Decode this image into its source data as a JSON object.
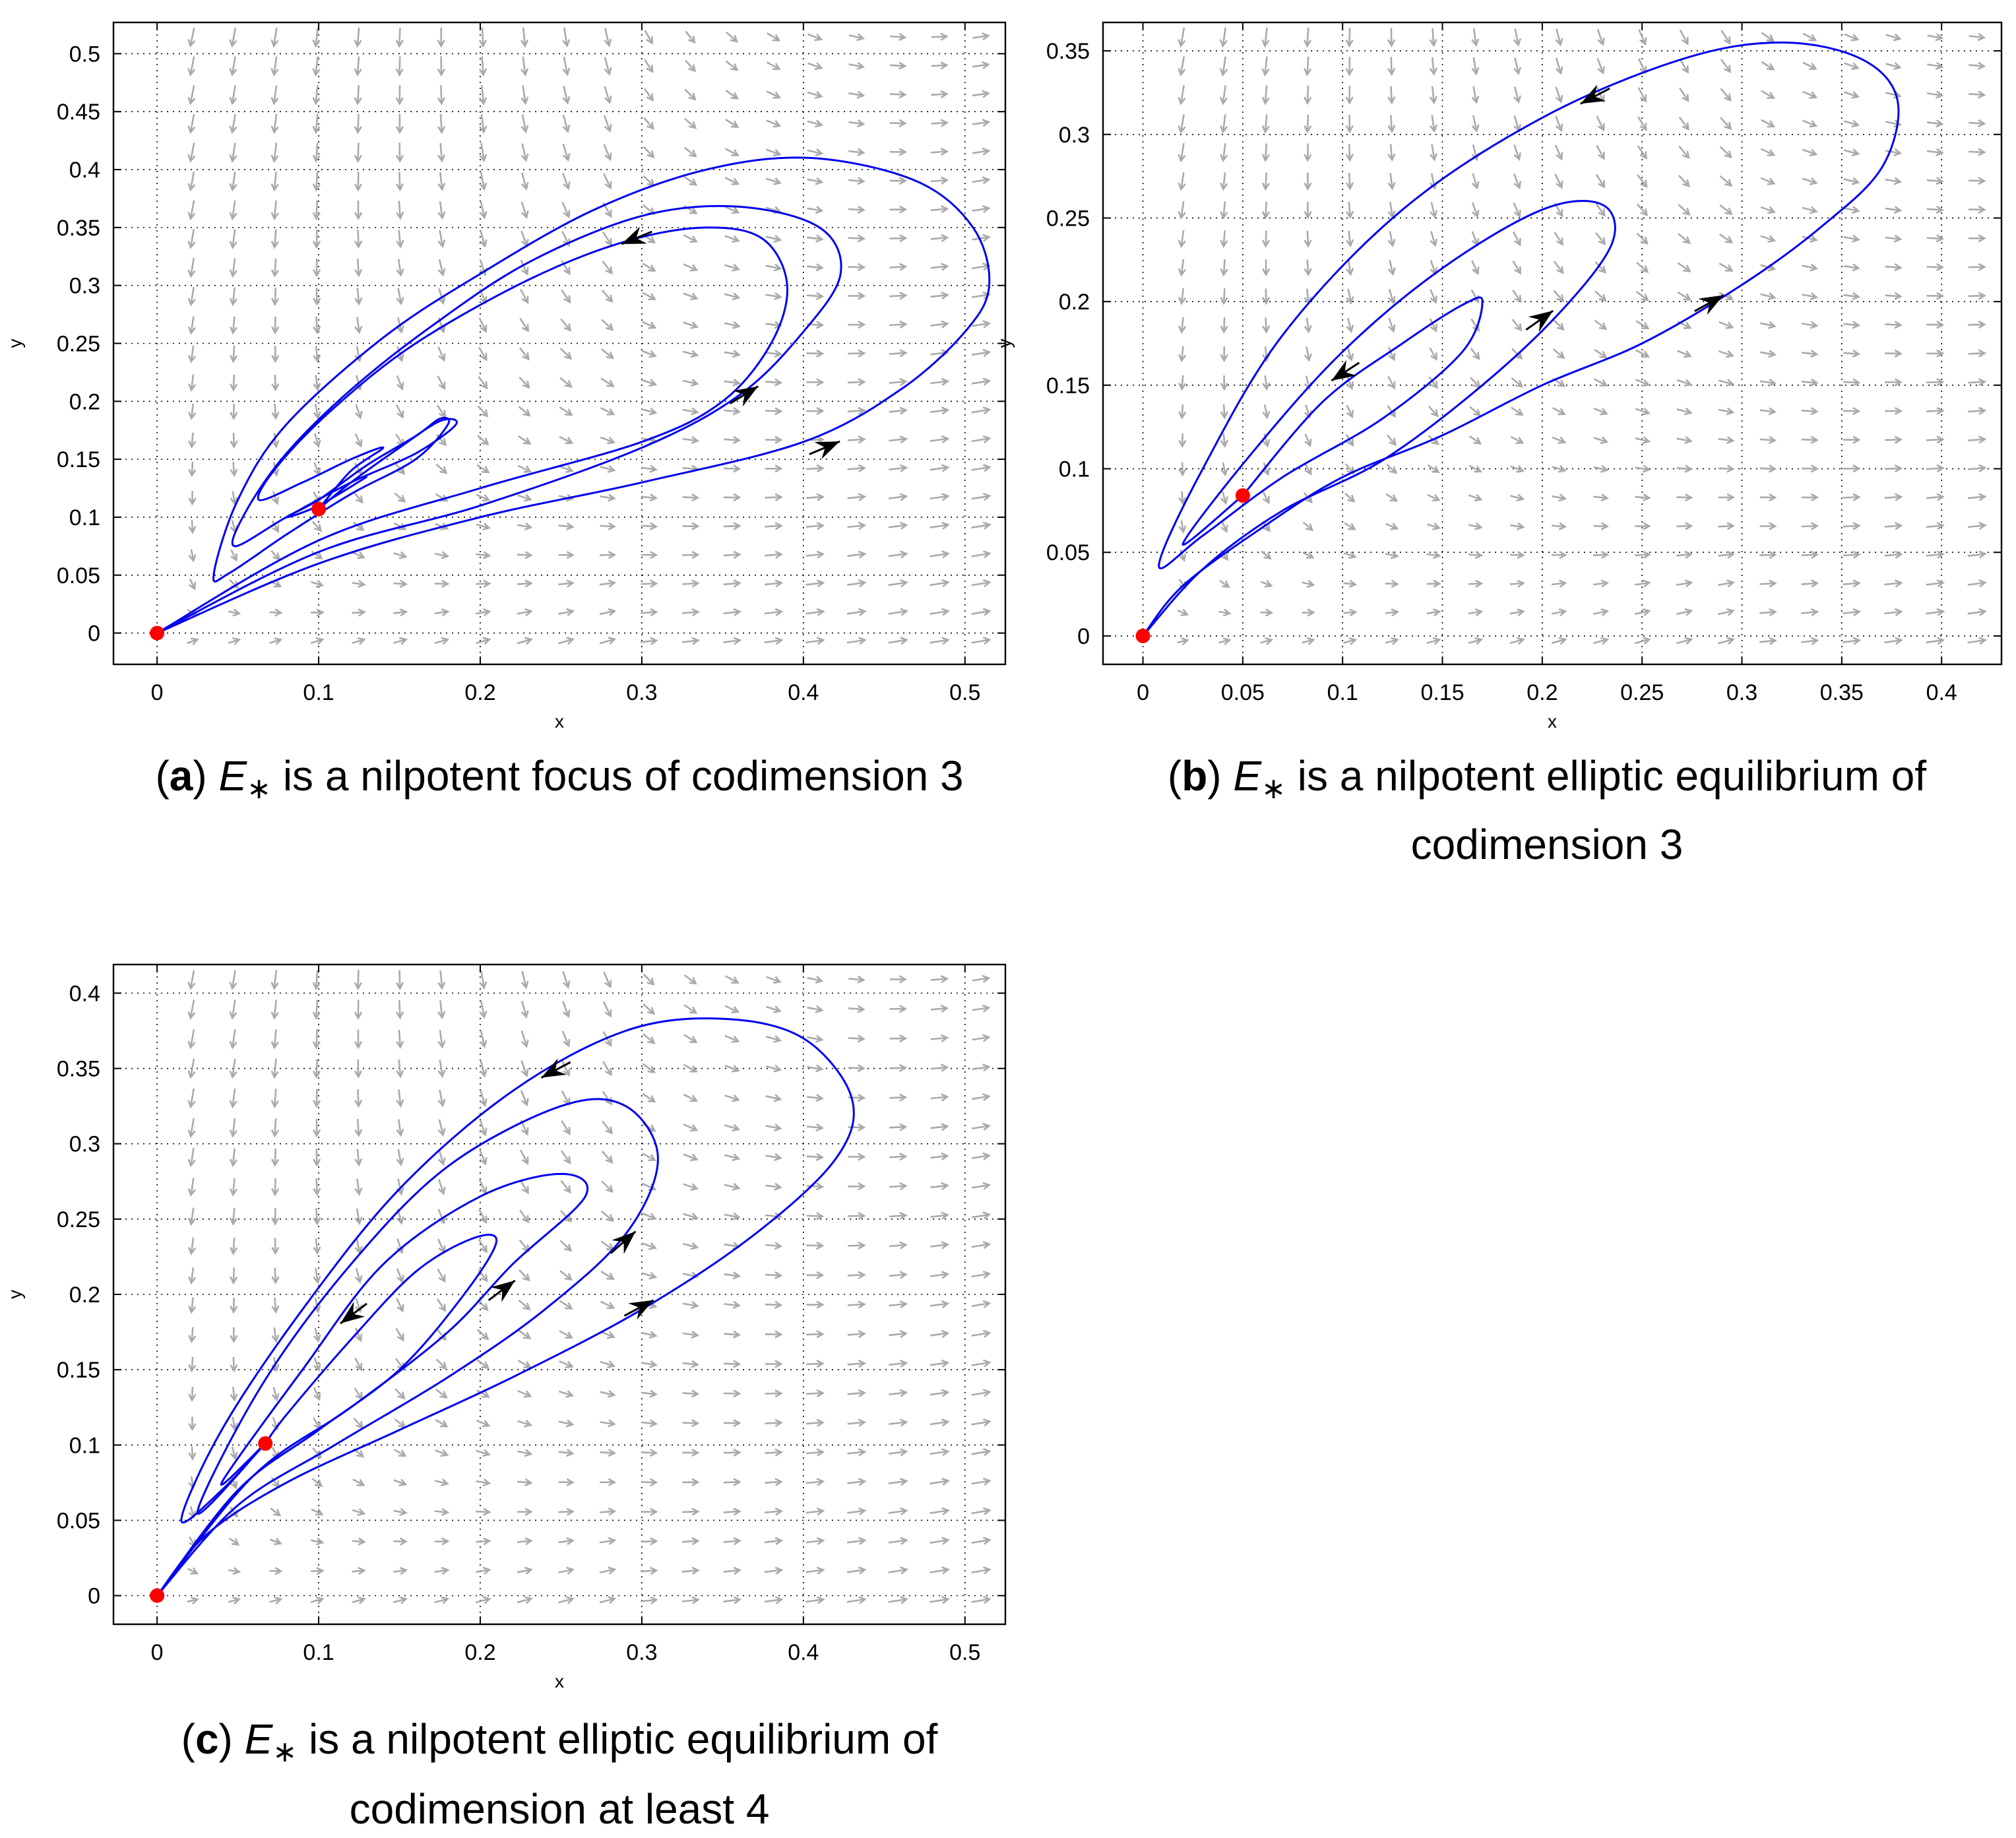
{
  "chart_data": [
    {
      "id": "a",
      "type": "line",
      "xlabel": "x",
      "ylabel": "y",
      "xlim": [
        -0.027,
        0.525
      ],
      "ylim": [
        -0.027,
        0.527
      ],
      "xticks": [
        0,
        0.1,
        0.2,
        0.3,
        0.4,
        0.5
      ],
      "xtick_labels": [
        "0",
        "0.1",
        "0.2",
        "0.3",
        "0.4",
        "0.5"
      ],
      "yticks": [
        0,
        0.05,
        0.1,
        0.15,
        0.2,
        0.25,
        0.3,
        0.35,
        0.4,
        0.45,
        0.5
      ],
      "ytick_labels": [
        "0",
        "0.05",
        "0.1",
        "0.15",
        "0.2",
        "0.25",
        "0.3",
        "0.35",
        "0.4",
        "0.45",
        "0.5"
      ],
      "grid": true,
      "caption": {
        "label": "a",
        "prefix": ") ",
        "symbol": "E",
        "sub": "∗",
        "lines": [
          " is a nilpotent focus of codimension 3"
        ]
      },
      "equilibria": [
        [
          0,
          0
        ],
        [
          0.1,
          0.107
        ]
      ],
      "trajectories": [
        [
          [
            0,
            0
          ],
          [
            0.1,
            0.06
          ],
          [
            0.2,
            0.1
          ],
          [
            0.3,
            0.13
          ],
          [
            0.4,
            0.165
          ],
          [
            0.46,
            0.21
          ],
          [
            0.5,
            0.26
          ],
          [
            0.515,
            0.3
          ],
          [
            0.505,
            0.35
          ],
          [
            0.47,
            0.39
          ],
          [
            0.405,
            0.41
          ],
          [
            0.34,
            0.4
          ],
          [
            0.27,
            0.365
          ],
          [
            0.2,
            0.31
          ],
          [
            0.14,
            0.255
          ],
          [
            0.08,
            0.18
          ],
          [
            0.05,
            0.115
          ],
          [
            0.035,
            0.05
          ],
          [
            0.045,
            0.052
          ],
          [
            0.08,
            0.085
          ],
          [
            0.12,
            0.12
          ],
          [
            0.16,
            0.15
          ],
          [
            0.18,
            0.18
          ],
          [
            0.175,
            0.185
          ],
          [
            0.16,
            0.17
          ],
          [
            0.13,
            0.145
          ],
          [
            0.1,
            0.115
          ],
          [
            0.08,
            0.1
          ],
          [
            0.1,
            0.11
          ],
          [
            0.13,
            0.135
          ]
        ],
        [
          [
            0,
            0
          ],
          [
            0.1,
            0.07
          ],
          [
            0.2,
            0.11
          ],
          [
            0.3,
            0.16
          ],
          [
            0.36,
            0.205
          ],
          [
            0.4,
            0.26
          ],
          [
            0.423,
            0.31
          ],
          [
            0.41,
            0.35
          ],
          [
            0.36,
            0.368
          ],
          [
            0.3,
            0.36
          ],
          [
            0.23,
            0.32
          ],
          [
            0.17,
            0.265
          ],
          [
            0.12,
            0.21
          ],
          [
            0.08,
            0.155
          ],
          [
            0.055,
            0.105
          ],
          [
            0.048,
            0.075
          ],
          [
            0.08,
            0.1
          ],
          [
            0.12,
            0.13
          ],
          [
            0.16,
            0.155
          ],
          [
            0.185,
            0.18
          ],
          [
            0.175,
            0.183
          ],
          [
            0.15,
            0.16
          ],
          [
            0.12,
            0.13
          ],
          [
            0.1,
            0.107
          ]
        ],
        [
          [
            0,
            0
          ],
          [
            0.1,
            0.08
          ],
          [
            0.2,
            0.125
          ],
          [
            0.3,
            0.165
          ],
          [
            0.35,
            0.2
          ],
          [
            0.38,
            0.25
          ],
          [
            0.39,
            0.3
          ],
          [
            0.375,
            0.34
          ],
          [
            0.34,
            0.35
          ],
          [
            0.29,
            0.338
          ],
          [
            0.23,
            0.305
          ],
          [
            0.16,
            0.25
          ],
          [
            0.11,
            0.195
          ],
          [
            0.075,
            0.145
          ],
          [
            0.063,
            0.115
          ],
          [
            0.09,
            0.13
          ],
          [
            0.12,
            0.15
          ],
          [
            0.14,
            0.16
          ],
          [
            0.12,
            0.14
          ],
          [
            0.1,
            0.107
          ]
        ]
      ],
      "arrows": [
        [
          0.415,
          0.161,
          0.95,
          0.4
        ],
        [
          0.365,
          0.207,
          0.9,
          0.55
        ],
        [
          0.295,
          0.34,
          -0.93,
          -0.38
        ]
      ]
    },
    {
      "id": "b",
      "type": "line",
      "xlabel": "x",
      "ylabel": "y",
      "xlim": [
        -0.02,
        0.43
      ],
      "ylim": [
        -0.017,
        0.367
      ],
      "xticks": [
        0,
        0.05,
        0.1,
        0.15,
        0.2,
        0.25,
        0.3,
        0.35,
        0.4
      ],
      "xtick_labels": [
        "0",
        "0.05",
        "0.1",
        "0.15",
        "0.2",
        "0.25",
        "0.3",
        "0.35",
        "0.4"
      ],
      "yticks": [
        0,
        0.05,
        0.1,
        0.15,
        0.2,
        0.25,
        0.3,
        0.35
      ],
      "ytick_labels": [
        "0",
        "0.05",
        "0.1",
        "0.15",
        "0.2",
        "0.25",
        "0.3",
        "0.35"
      ],
      "grid": true,
      "caption": {
        "label": "b",
        "prefix": ") ",
        "symbol": "E",
        "sub": "∗",
        "lines": [
          " is a nilpotent elliptic equilibrium of",
          "codimension 3"
        ]
      },
      "equilibria": [
        [
          0,
          0
        ],
        [
          0.05,
          0.084
        ]
      ],
      "trajectories": [
        [
          [
            0,
            0
          ],
          [
            0.02,
            0.03
          ],
          [
            0.06,
            0.065
          ],
          [
            0.1,
            0.095
          ],
          [
            0.15,
            0.12
          ],
          [
            0.2,
            0.15
          ],
          [
            0.25,
            0.175
          ],
          [
            0.3,
            0.21
          ],
          [
            0.34,
            0.245
          ],
          [
            0.37,
            0.28
          ],
          [
            0.378,
            0.32
          ],
          [
            0.36,
            0.345
          ],
          [
            0.32,
            0.355
          ],
          [
            0.27,
            0.345
          ],
          [
            0.2,
            0.31
          ],
          [
            0.13,
            0.255
          ],
          [
            0.07,
            0.18
          ],
          [
            0.03,
            0.1
          ],
          [
            0.008,
            0.042
          ],
          [
            0.03,
            0.06
          ],
          [
            0.07,
            0.095
          ],
          [
            0.12,
            0.13
          ],
          [
            0.16,
            0.17
          ],
          [
            0.17,
            0.2
          ],
          [
            0.16,
            0.198
          ],
          [
            0.13,
            0.175
          ],
          [
            0.09,
            0.14
          ],
          [
            0.05,
            0.084
          ]
        ],
        [
          [
            0,
            0
          ],
          [
            0.03,
            0.04
          ],
          [
            0.07,
            0.075
          ],
          [
            0.12,
            0.105
          ],
          [
            0.17,
            0.15
          ],
          [
            0.21,
            0.195
          ],
          [
            0.235,
            0.235
          ],
          [
            0.23,
            0.258
          ],
          [
            0.2,
            0.255
          ],
          [
            0.15,
            0.22
          ],
          [
            0.1,
            0.17
          ],
          [
            0.055,
            0.11
          ],
          [
            0.02,
            0.055
          ],
          [
            0.05,
            0.084
          ]
        ]
      ],
      "arrows": [
        [
          0.285,
          0.2,
          0.9,
          0.5
        ],
        [
          0.2,
          0.19,
          0.85,
          0.6
        ],
        [
          0.225,
          0.322,
          -0.88,
          -0.46
        ],
        [
          0.1,
          0.157,
          -0.85,
          -0.55
        ]
      ]
    },
    {
      "id": "c",
      "type": "line",
      "xlabel": "x",
      "ylabel": "y",
      "xlim": [
        -0.027,
        0.525
      ],
      "ylim": [
        -0.019,
        0.419
      ],
      "xticks": [
        0,
        0.1,
        0.2,
        0.3,
        0.4,
        0.5
      ],
      "xtick_labels": [
        "0",
        "0.1",
        "0.2",
        "0.3",
        "0.4",
        "0.5"
      ],
      "yticks": [
        0,
        0.05,
        0.1,
        0.15,
        0.2,
        0.25,
        0.3,
        0.35,
        0.4
      ],
      "ytick_labels": [
        "0",
        "0.05",
        "0.1",
        "0.15",
        "0.2",
        "0.25",
        "0.3",
        "0.35",
        "0.4"
      ],
      "grid": true,
      "caption": {
        "label": "c",
        "prefix": ") ",
        "symbol": "E",
        "sub": "∗",
        "lines": [
          " is a nilpotent elliptic equilibrium of",
          "codimension at least 4"
        ]
      },
      "equilibria": [
        [
          0,
          0
        ],
        [
          0.067,
          0.101
        ]
      ],
      "trajectories": [
        [
          [
            0,
            0
          ],
          [
            0.03,
            0.04
          ],
          [
            0.08,
            0.075
          ],
          [
            0.15,
            0.11
          ],
          [
            0.22,
            0.145
          ],
          [
            0.3,
            0.19
          ],
          [
            0.37,
            0.24
          ],
          [
            0.42,
            0.29
          ],
          [
            0.43,
            0.33
          ],
          [
            0.4,
            0.37
          ],
          [
            0.35,
            0.383
          ],
          [
            0.29,
            0.375
          ],
          [
            0.22,
            0.335
          ],
          [
            0.15,
            0.27
          ],
          [
            0.09,
            0.19
          ],
          [
            0.04,
            0.11
          ],
          [
            0.015,
            0.05
          ],
          [
            0.04,
            0.07
          ],
          [
            0.067,
            0.101
          ]
        ],
        [
          [
            0,
            0
          ],
          [
            0.05,
            0.06
          ],
          [
            0.11,
            0.1
          ],
          [
            0.18,
            0.145
          ],
          [
            0.24,
            0.19
          ],
          [
            0.29,
            0.24
          ],
          [
            0.31,
            0.29
          ],
          [
            0.29,
            0.325
          ],
          [
            0.25,
            0.325
          ],
          [
            0.18,
            0.285
          ],
          [
            0.12,
            0.22
          ],
          [
            0.065,
            0.14
          ],
          [
            0.025,
            0.055
          ],
          [
            0.067,
            0.101
          ]
        ],
        [
          [
            0,
            0
          ],
          [
            0.06,
            0.08
          ],
          [
            0.12,
            0.125
          ],
          [
            0.18,
            0.175
          ],
          [
            0.22,
            0.22
          ],
          [
            0.265,
            0.265
          ],
          [
            0.25,
            0.28
          ],
          [
            0.2,
            0.265
          ],
          [
            0.14,
            0.22
          ],
          [
            0.09,
            0.15
          ],
          [
            0.04,
            0.075
          ],
          [
            0.067,
            0.101
          ]
        ],
        [
          [
            0,
            0
          ],
          [
            0.05,
            0.07
          ],
          [
            0.1,
            0.11
          ],
          [
            0.15,
            0.15
          ],
          [
            0.19,
            0.2
          ],
          [
            0.21,
            0.235
          ],
          [
            0.195,
            0.237
          ],
          [
            0.16,
            0.215
          ],
          [
            0.12,
            0.17
          ],
          [
            0.08,
            0.12
          ],
          [
            0.067,
            0.101
          ]
        ]
      ],
      "arrows": [
        [
          0.3,
          0.192,
          0.88,
          0.47
        ],
        [
          0.29,
          0.236,
          0.75,
          0.66
        ],
        [
          0.215,
          0.204,
          0.8,
          0.6
        ],
        [
          0.245,
          0.348,
          -0.88,
          -0.47
        ],
        [
          0.12,
          0.186,
          -0.8,
          -0.6
        ]
      ]
    }
  ]
}
